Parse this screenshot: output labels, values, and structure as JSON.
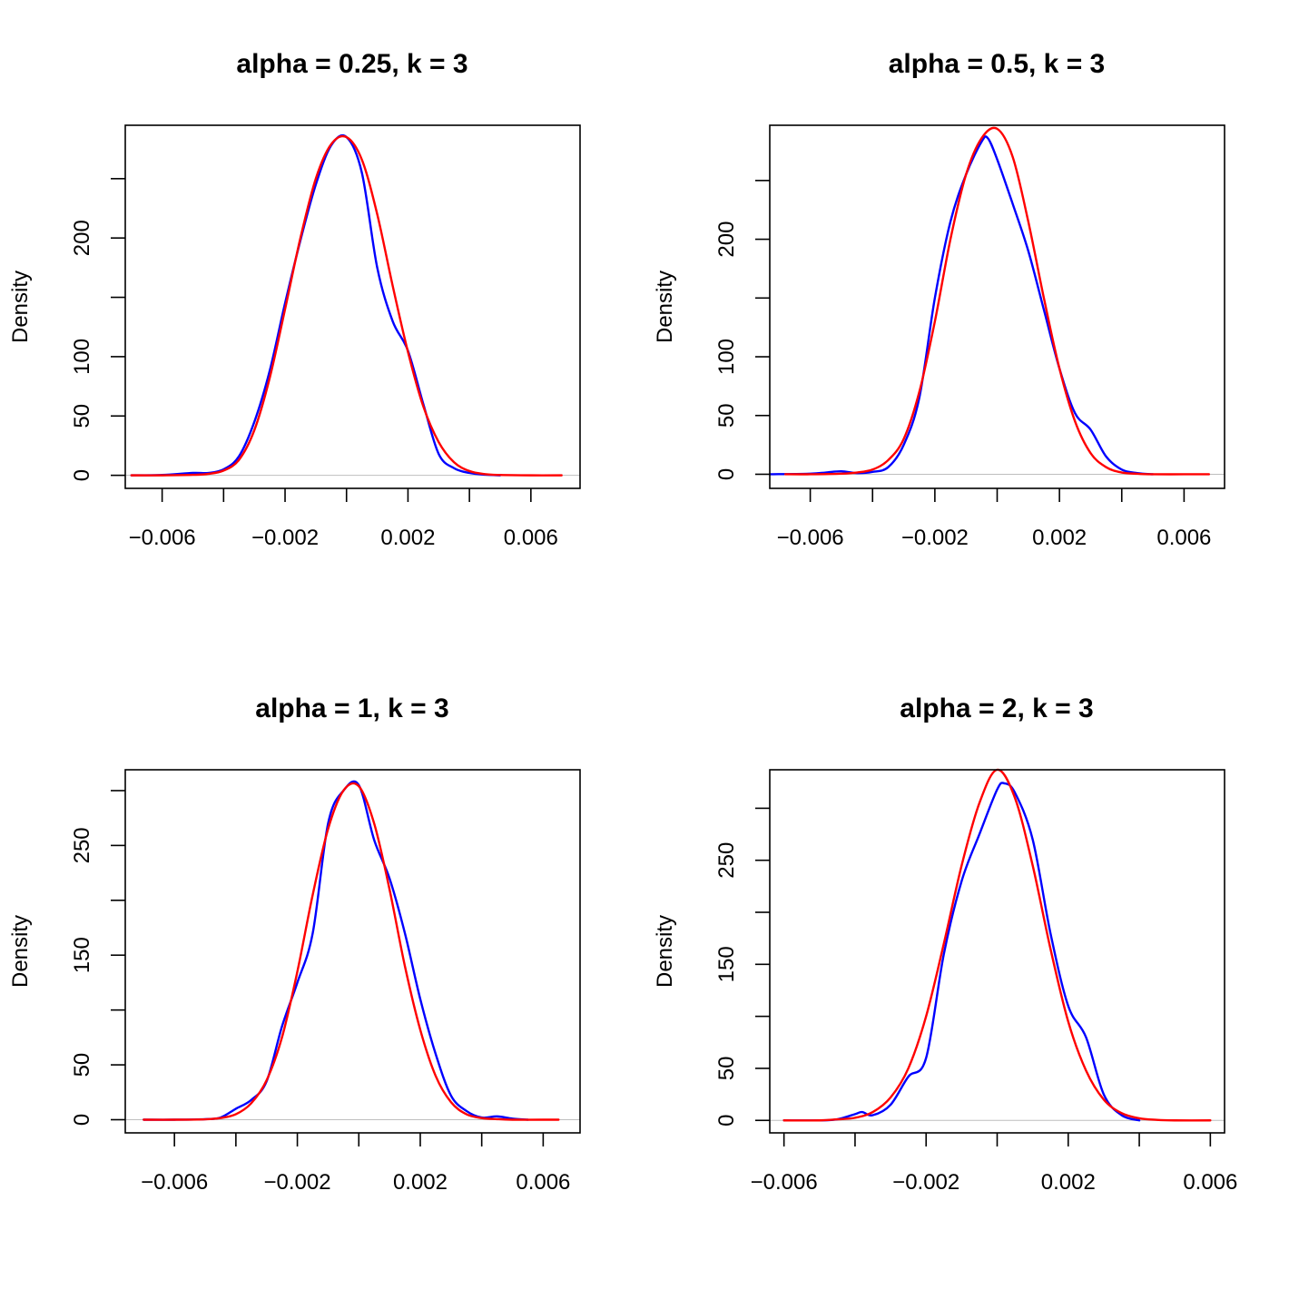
{
  "chart_data": [
    {
      "type": "line",
      "title": "alpha = 0.25, k = 3",
      "ylabel": "Density",
      "xlabel": "",
      "xlim": [
        -0.0072,
        0.0076
      ],
      "ylim": [
        -11,
        295
      ],
      "xticks": [
        -0.006,
        -0.004,
        -0.002,
        0,
        0.002,
        0.004,
        0.006
      ],
      "xtick_labels": [
        "−0.006",
        "",
        "−0.002",
        "",
        "0.002",
        "",
        "0.006"
      ],
      "yticks": [
        0,
        50,
        100,
        150,
        200,
        250
      ],
      "ytick_labels": [
        "0",
        "50",
        "100",
        "",
        "200",
        ""
      ],
      "series": [
        {
          "color": "#0000ff",
          "x": [
            -0.007,
            -0.006,
            -0.005,
            -0.0045,
            -0.004,
            -0.0035,
            -0.003,
            -0.0025,
            -0.002,
            -0.0015,
            -0.001,
            -0.0005,
            0.0,
            0.0005,
            0.001,
            0.0015,
            0.002,
            0.0025,
            0.003,
            0.0035,
            0.004,
            0.0045,
            0.005
          ],
          "y": [
            0,
            0.3,
            2,
            2,
            5,
            16,
            45,
            88,
            145,
            198,
            245,
            278,
            285,
            255,
            175,
            130,
            105,
            60,
            18,
            6,
            2,
            0.5,
            0
          ]
        },
        {
          "color": "#ff0000",
          "x": [
            -0.007,
            -0.006,
            -0.005,
            -0.0045,
            -0.004,
            -0.0035,
            -0.003,
            -0.0025,
            -0.002,
            -0.0015,
            -0.001,
            -0.0005,
            0.0,
            0.0005,
            0.001,
            0.0015,
            0.002,
            0.0025,
            0.003,
            0.0035,
            0.004,
            0.0045,
            0.005,
            0.006,
            0.007
          ],
          "y": [
            0,
            0,
            0.4,
            1.2,
            4,
            13,
            38,
            82,
            140,
            200,
            250,
            279,
            285,
            266,
            220,
            160,
            104,
            58,
            28,
            11,
            3.6,
            1,
            0.3,
            0,
            0
          ]
        }
      ]
    },
    {
      "type": "line",
      "title": "alpha = 0.5, k = 3",
      "ylabel": "Density",
      "xlabel": "",
      "xlim": [
        -0.0073,
        0.0073
      ],
      "ylim": [
        -12,
        297
      ],
      "xticks": [
        -0.006,
        -0.004,
        -0.002,
        0,
        0.002,
        0.004,
        0.006
      ],
      "xtick_labels": [
        "−0.006",
        "",
        "−0.002",
        "",
        "0.002",
        "",
        "0.006"
      ],
      "yticks": [
        0,
        50,
        100,
        150,
        200,
        250
      ],
      "ytick_labels": [
        "0",
        "50",
        "100",
        "",
        "200",
        ""
      ],
      "series": [
        {
          "color": "#0000ff",
          "x": [
            -0.0073,
            -0.006,
            -0.0055,
            -0.005,
            -0.0045,
            -0.004,
            -0.0035,
            -0.003,
            -0.0025,
            -0.002,
            -0.0015,
            -0.001,
            -0.0005,
            -0.0003,
            0.0,
            0.0005,
            0.001,
            0.0015,
            0.002,
            0.0025,
            0.003,
            0.0035,
            0.004,
            0.0045,
            0.005
          ],
          "y": [
            0,
            0.5,
            1.5,
            2.5,
            1,
            2,
            6,
            25,
            65,
            150,
            215,
            255,
            283,
            286,
            268,
            230,
            190,
            140,
            90,
            52,
            38,
            15,
            4,
            1,
            0
          ]
        },
        {
          "color": "#ff0000",
          "x": [
            -0.0068,
            -0.006,
            -0.005,
            -0.0045,
            -0.004,
            -0.0035,
            -0.003,
            -0.0025,
            -0.002,
            -0.0015,
            -0.001,
            -0.0005,
            0.0,
            0.0005,
            0.001,
            0.0015,
            0.002,
            0.0025,
            0.003,
            0.0035,
            0.004,
            0.0045,
            0.005,
            0.006,
            0.0068
          ],
          "y": [
            0,
            0,
            0.5,
            1.5,
            4,
            12,
            30,
            70,
            130,
            200,
            255,
            286,
            294,
            270,
            215,
            150,
            90,
            45,
            18,
            6,
            1.5,
            0.4,
            0,
            0,
            0
          ]
        }
      ]
    },
    {
      "type": "line",
      "title": "alpha = 1, k = 3",
      "ylabel": "Density",
      "xlabel": "",
      "xlim": [
        -0.0076,
        0.0072
      ],
      "ylim": [
        -12,
        319
      ],
      "xticks": [
        -0.006,
        -0.004,
        -0.002,
        0,
        0.002,
        0.004,
        0.006
      ],
      "xtick_labels": [
        "−0.006",
        "",
        "−0.002",
        "",
        "0.002",
        "",
        "0.006"
      ],
      "yticks": [
        0,
        50,
        100,
        150,
        200,
        250,
        300
      ],
      "ytick_labels": [
        "0",
        "50",
        "",
        "150",
        "",
        "250",
        ""
      ],
      "series": [
        {
          "color": "#0000ff",
          "x": [
            -0.007,
            -0.006,
            -0.005,
            -0.0045,
            -0.004,
            -0.0035,
            -0.003,
            -0.0025,
            -0.002,
            -0.0015,
            -0.001,
            -0.0005,
            0.0,
            0.0005,
            0.001,
            0.0015,
            0.002,
            0.0025,
            0.003,
            0.0035,
            0.004,
            0.0045,
            0.005,
            0.0055
          ],
          "y": [
            0,
            0,
            0.5,
            2,
            10,
            18,
            35,
            85,
            125,
            170,
            270,
            300,
            305,
            255,
            220,
            170,
            110,
            60,
            22,
            8,
            2,
            3,
            1,
            0
          ]
        },
        {
          "color": "#ff0000",
          "x": [
            -0.007,
            -0.006,
            -0.005,
            -0.0045,
            -0.004,
            -0.0035,
            -0.003,
            -0.0025,
            -0.002,
            -0.0015,
            -0.001,
            -0.0005,
            0.0,
            0.0005,
            0.001,
            0.0015,
            0.002,
            0.0025,
            0.003,
            0.0035,
            0.004,
            0.0045,
            0.005,
            0.006,
            0.0065
          ],
          "y": [
            0,
            0,
            0.4,
            1.5,
            5,
            15,
            36,
            75,
            135,
            205,
            265,
            300,
            304,
            270,
            210,
            140,
            82,
            40,
            16,
            5,
            1.5,
            0.5,
            0,
            0,
            0
          ]
        }
      ]
    },
    {
      "type": "line",
      "title": "alpha = 2, k = 3",
      "ylabel": "Density",
      "xlabel": "",
      "xlim": [
        -0.0064,
        0.0064
      ],
      "ylim": [
        -12,
        337
      ],
      "xticks": [
        -0.006,
        -0.004,
        -0.002,
        0,
        0.002,
        0.004,
        0.006
      ],
      "xtick_labels": [
        "−0.006",
        "",
        "−0.002",
        "",
        "0.002",
        "",
        "0.006"
      ],
      "yticks": [
        0,
        50,
        100,
        150,
        200,
        250,
        300
      ],
      "ytick_labels": [
        "0",
        "50",
        "",
        "150",
        "",
        "250",
        ""
      ],
      "series": [
        {
          "color": "#0000ff",
          "x": [
            -0.006,
            -0.005,
            -0.0045,
            -0.004,
            -0.0038,
            -0.0035,
            -0.003,
            -0.0025,
            -0.002,
            -0.0015,
            -0.001,
            -0.0005,
            0.0,
            0.0002,
            0.0005,
            0.001,
            0.0015,
            0.002,
            0.0025,
            0.003,
            0.0035,
            0.004
          ],
          "y": [
            0,
            0,
            1,
            6,
            8,
            5,
            15,
            42,
            60,
            160,
            230,
            275,
            318,
            324,
            315,
            270,
            180,
            110,
            80,
            25,
            5,
            0
          ]
        },
        {
          "color": "#ff0000",
          "x": [
            -0.006,
            -0.005,
            -0.0045,
            -0.004,
            -0.0035,
            -0.003,
            -0.0025,
            -0.002,
            -0.0015,
            -0.001,
            -0.0005,
            0.0,
            0.0005,
            0.001,
            0.0015,
            0.002,
            0.0025,
            0.003,
            0.0035,
            0.004,
            0.0045,
            0.005,
            0.006
          ],
          "y": [
            0,
            0,
            1,
            2.5,
            8,
            22,
            50,
            100,
            170,
            245,
            305,
            337,
            310,
            245,
            165,
            95,
            48,
            20,
            7,
            2,
            0.5,
            0,
            0
          ]
        }
      ]
    }
  ]
}
